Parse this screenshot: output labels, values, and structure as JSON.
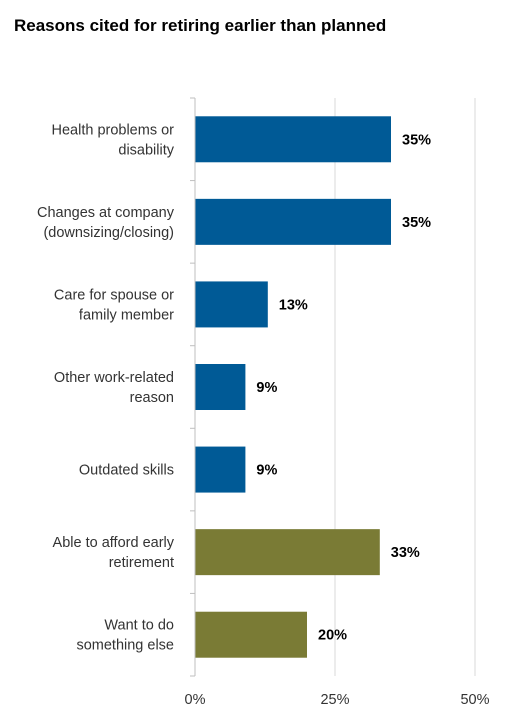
{
  "chart_data": {
    "type": "bar",
    "orientation": "horizontal",
    "title": "Reasons cited for retiring earlier than planned",
    "xlabel": "",
    "ylabel": "",
    "xlim": [
      0,
      50
    ],
    "ticks": [
      {
        "value": 0,
        "label": "0%"
      },
      {
        "value": 25,
        "label": "25%"
      },
      {
        "value": 50,
        "label": "50%"
      }
    ],
    "grid": true,
    "legend": "none",
    "categories": [
      {
        "lines": [
          "Health problems or",
          "disability"
        ],
        "value": 35,
        "label": "35%",
        "color": "#005a96"
      },
      {
        "lines": [
          "Changes at company",
          "(downsizing/closing)"
        ],
        "value": 35,
        "label": "35%",
        "color": "#005a96"
      },
      {
        "lines": [
          "Care for spouse or",
          "family member"
        ],
        "value": 13,
        "label": "13%",
        "color": "#005a96"
      },
      {
        "lines": [
          "Other work-related",
          "reason"
        ],
        "value": 9,
        "label": "9%",
        "color": "#005a96"
      },
      {
        "lines": [
          "Outdated skills"
        ],
        "value": 9,
        "label": "9%",
        "color": "#005a96"
      },
      {
        "lines": [
          "Able to afford early",
          "retirement"
        ],
        "value": 33,
        "label": "33%",
        "color": "#7a7b35"
      },
      {
        "lines": [
          "Want to do",
          "something else"
        ],
        "value": 20,
        "label": "20%",
        "color": "#7a7b35"
      }
    ],
    "colors": {
      "gridline": "#d9d9d9",
      "axis": "#bfbfbf"
    }
  }
}
